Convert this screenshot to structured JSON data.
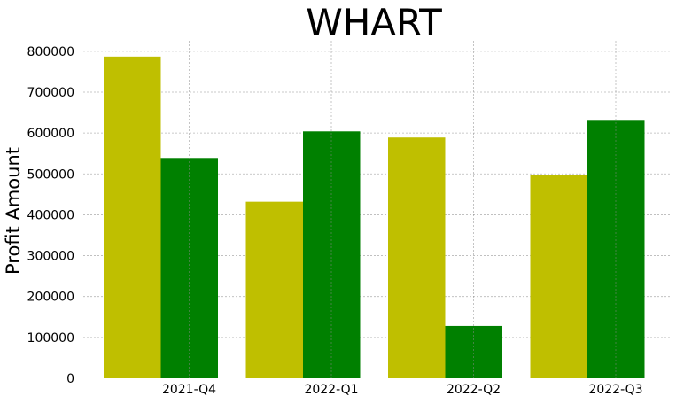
{
  "chart_data": {
    "type": "bar",
    "title": "WHART",
    "xlabel": "",
    "ylabel": "Profit Amount",
    "categories": [
      "2021-Q4",
      "2022-Q1",
      "2022-Q2",
      "2022-Q3"
    ],
    "series": [
      {
        "name": "series-1",
        "color": "#bfbf00",
        "values": [
          787000,
          432000,
          589000,
          497000
        ]
      },
      {
        "name": "series-2",
        "color": "#008000",
        "values": [
          539000,
          604000,
          128000,
          630000
        ]
      }
    ],
    "ylim": [
      0,
      830000
    ],
    "yticks": [
      0,
      100000,
      200000,
      300000,
      400000,
      500000,
      600000,
      700000,
      800000
    ],
    "grid": true,
    "legend": "none"
  }
}
